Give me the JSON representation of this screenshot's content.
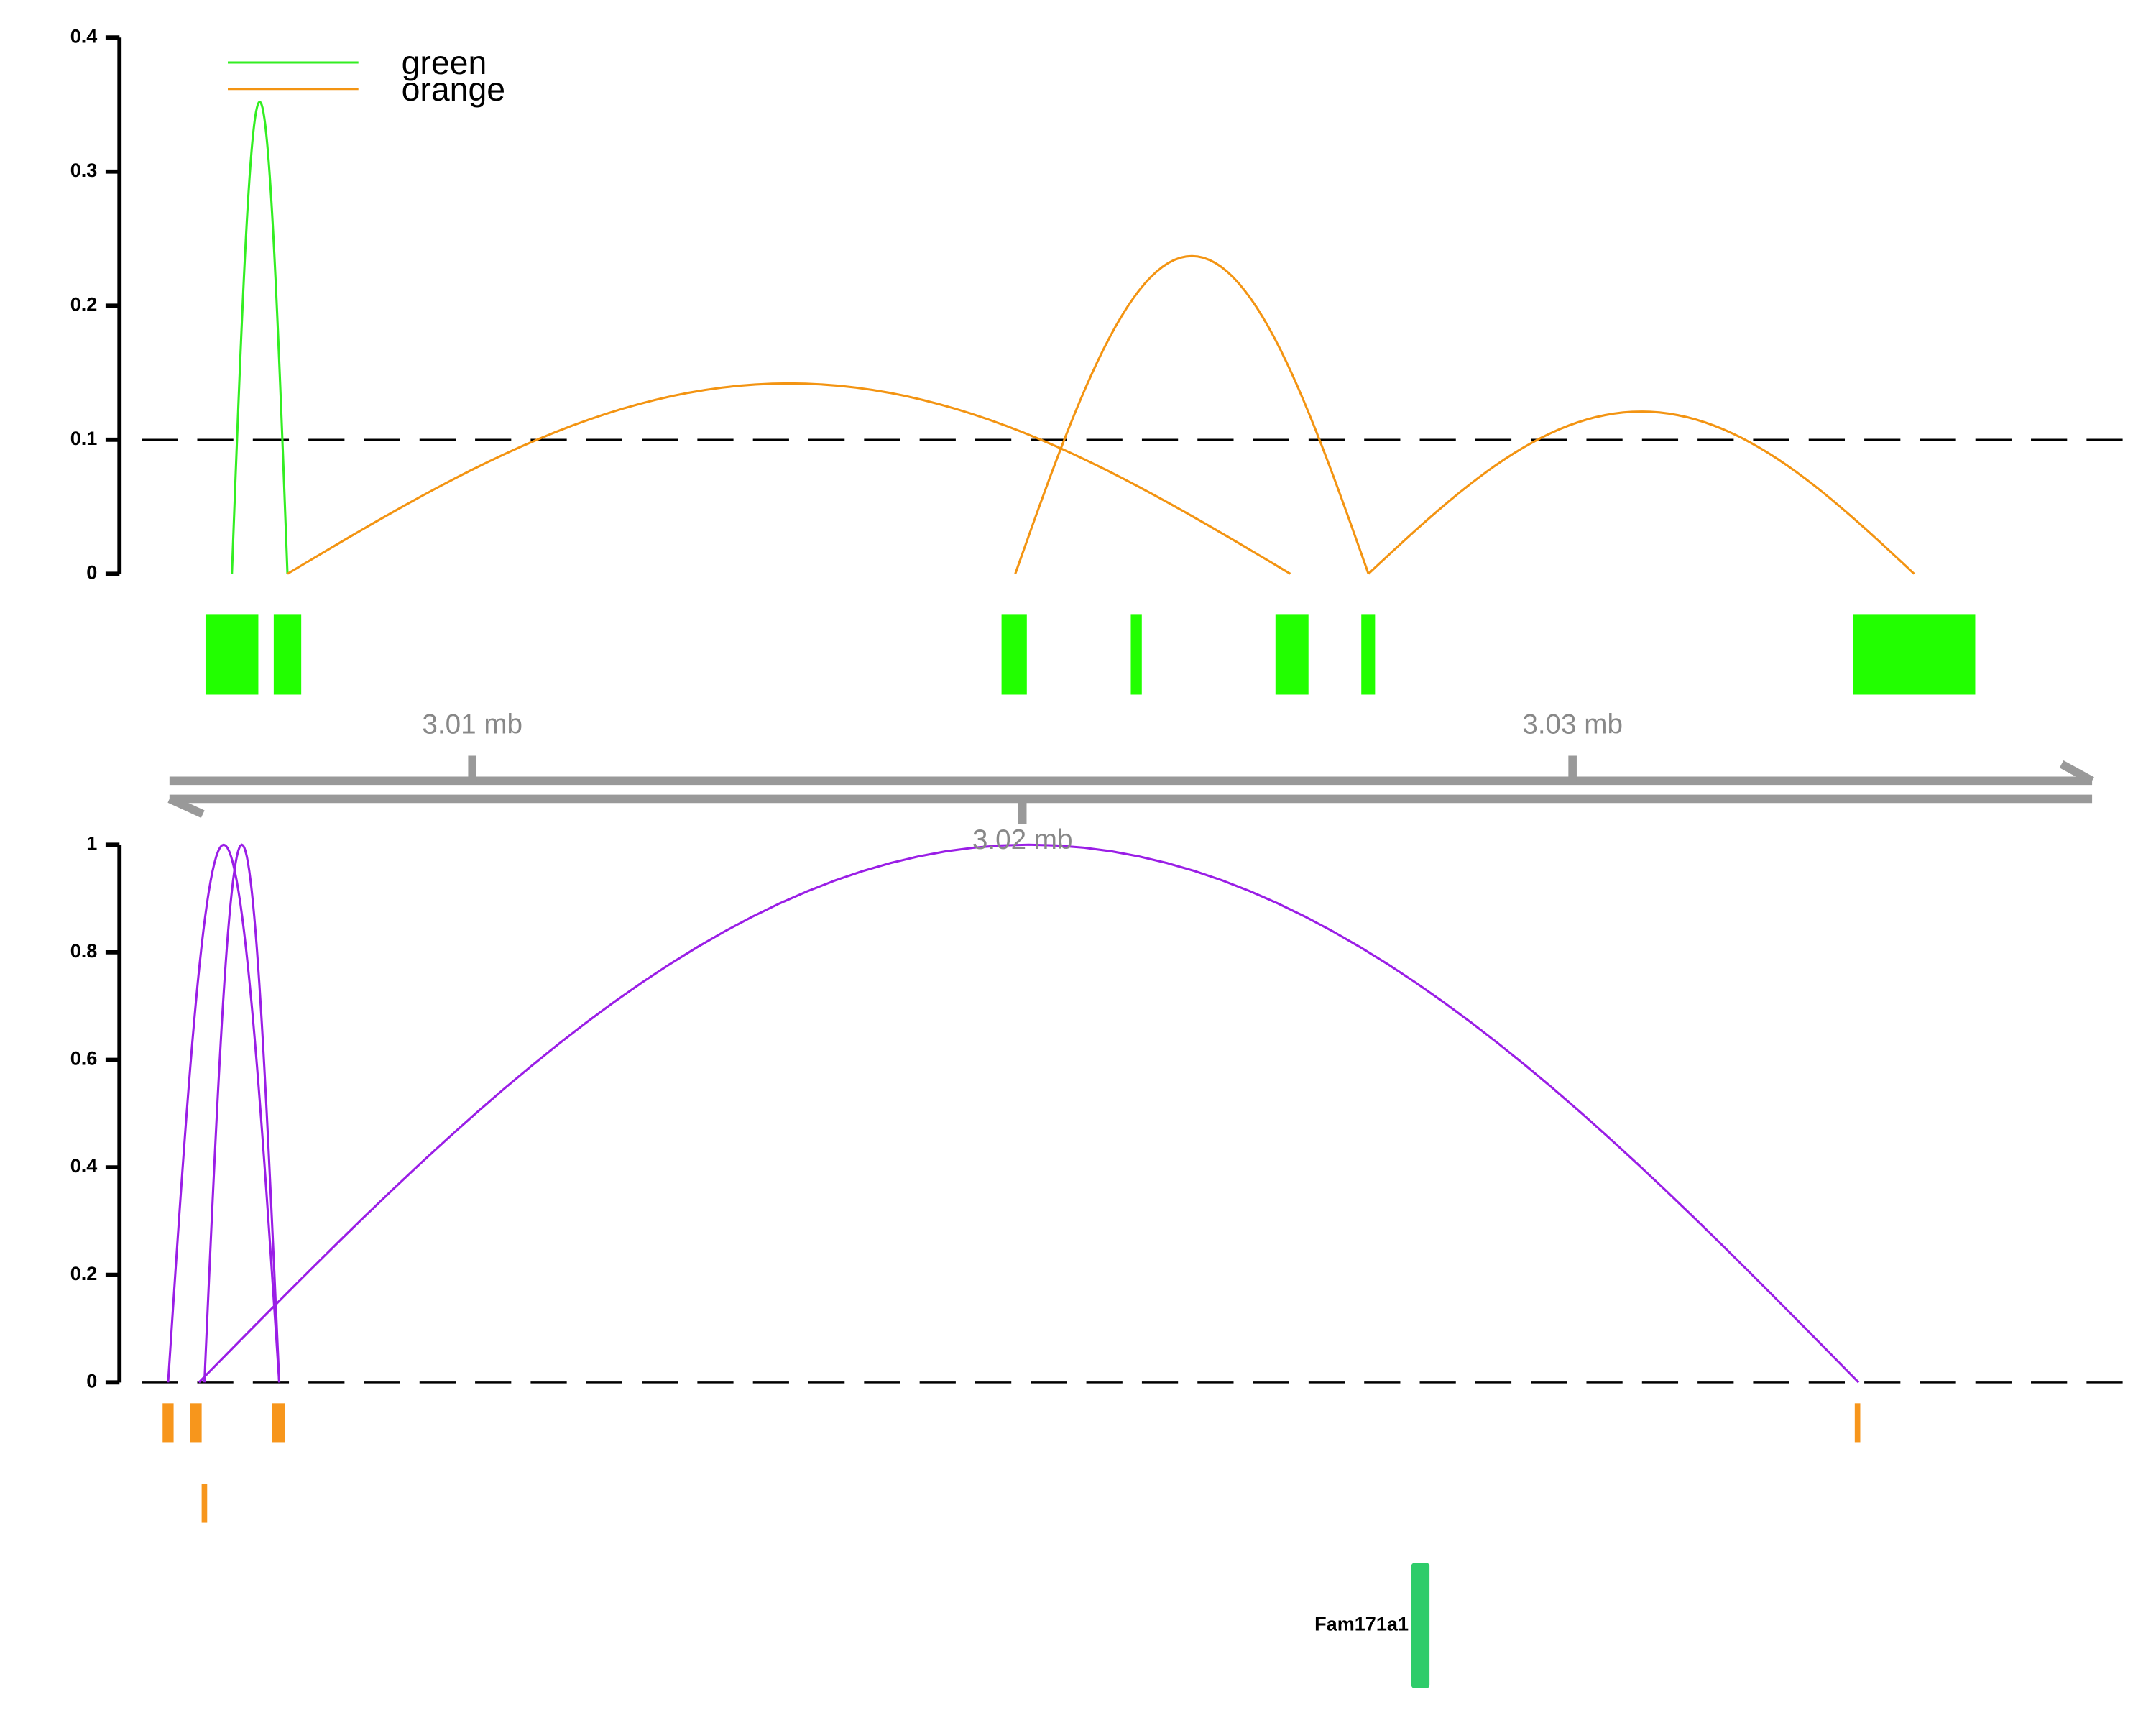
{
  "chart_data": [
    {
      "type": "arc",
      "ylim": [
        0,
        0.4
      ],
      "yticks": [
        0,
        0.1,
        0.2,
        0.3,
        0.4
      ],
      "threshold": 0.1,
      "legend": "top-left",
      "series": [
        {
          "name": "green",
          "color": "#33ee22",
          "start": [
            3.00563
          ],
          "end": [
            3.00664
          ],
          "values": [
            0.352
          ]
        },
        {
          "name": "orange",
          "color": "#f39412",
          "start": [
            3.00664,
            3.01987,
            3.02629
          ],
          "end": [
            3.02487,
            3.02629,
            3.03621
          ],
          "values": [
            0.142,
            0.237,
            0.121
          ]
        }
      ],
      "features": [
        {
          "color": "#22ff00",
          "row": 0,
          "start": [
            3.00515,
            3.00639,
            3.01962,
            3.02197,
            3.0246,
            3.02616,
            3.0351
          ],
          "end": [
            3.00611,
            3.00689,
            3.02008,
            3.02217,
            3.0252,
            3.02641,
            3.03732
          ]
        }
      ]
    },
    {
      "type": "arc",
      "ylim": [
        0,
        1
      ],
      "yticks": [
        0,
        0.2,
        0.4,
        0.6,
        0.8,
        1
      ],
      "threshold": 0,
      "series": [
        {
          "color": "#9a1ee6",
          "start": [
            3.00447,
            3.00513,
            3.00503
          ],
          "end": [
            3.00649,
            3.00649,
            3.0352
          ],
          "values": [
            1,
            1,
            1
          ]
        }
      ],
      "features": [
        {
          "color": "#f7961c",
          "row": 0,
          "start": [
            3.00437,
            3.00487,
            3.00636,
            3.03513
          ],
          "end": [
            3.00457,
            3.00508,
            3.00659,
            3.03523
          ]
        },
        {
          "color": "#f7961c",
          "row": 1,
          "start": [
            3.00508
          ],
          "end": [
            3.00518
          ]
        }
      ],
      "genes": [
        {
          "label": "Fam171a1",
          "start": 3.02707,
          "end": 3.0274,
          "color": "#2ecc6a"
        }
      ]
    },
    {
      "type": "axis",
      "xlim": [
        3.0044,
        3.0395
      ],
      "xticks": [
        {
          "value": 3.01,
          "label": "3.01 mb"
        },
        {
          "value": 3.02,
          "label": "3.02 mb"
        },
        {
          "value": 3.03,
          "label": "3.03 mb"
        }
      ]
    }
  ]
}
